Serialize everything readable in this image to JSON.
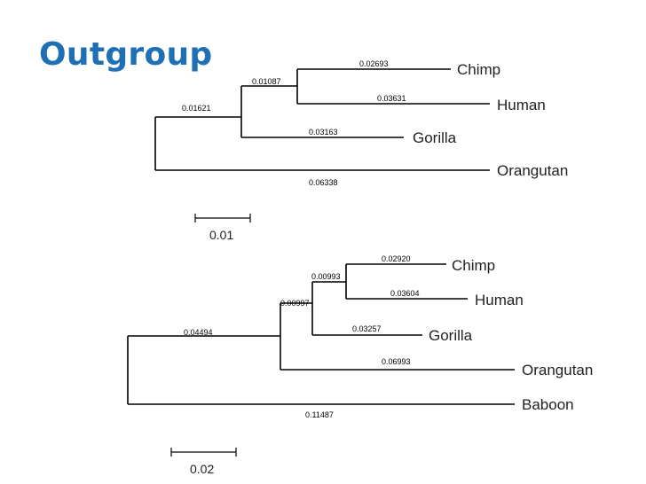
{
  "slide": {
    "title": "Outgroup"
  },
  "tree1": {
    "branch_lengths": {
      "chimp": "0.02693",
      "ape_clade": "0.01087",
      "human": "0.03631",
      "root_left": "0.01621",
      "gorilla": "0.03163",
      "orangutan": "0.06338"
    },
    "taxa": {
      "chimp": "Chimp",
      "human": "Human",
      "gorilla": "Gorilla",
      "orangutan": "Orangutan"
    },
    "scale_label": "0.01"
  },
  "tree2": {
    "branch_lengths": {
      "chimp": "0.02920",
      "chimp_human": "0.00993",
      "human": "0.03604",
      "african_apes": "0.00997",
      "apes": "0.04494",
      "gorilla": "0.03257",
      "orangutan": "0.06993",
      "baboon": "0.11487"
    },
    "taxa": {
      "chimp": "Chimp",
      "human": "Human",
      "gorilla": "Gorilla",
      "orangutan": "Orangutan",
      "baboon": "Baboon"
    },
    "scale_label": "0.02"
  }
}
